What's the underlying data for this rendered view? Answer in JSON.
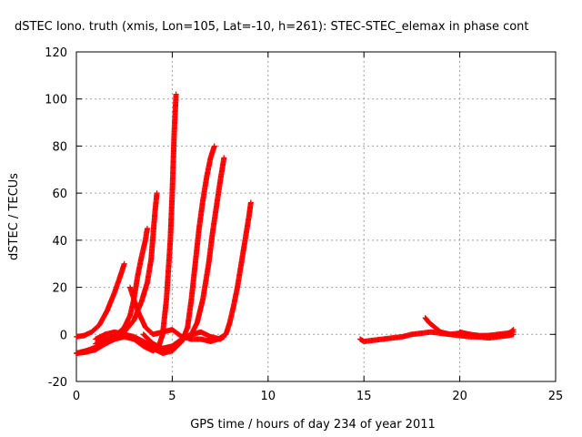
{
  "chart_data": {
    "type": "scatter",
    "title": "dSTEC Iono. truth (xmis, Lon=105, Lat=-10, h=261): STEC-STEC_elemax in phase cont",
    "xlabel": "GPS time / hours of day 234 of year 2011",
    "ylabel": "dSTEC  / TECUs",
    "xlim": [
      0,
      25
    ],
    "ylim": [
      -20,
      120
    ],
    "xticks": [
      0,
      5,
      10,
      15,
      20,
      25
    ],
    "yticks": [
      -20,
      0,
      20,
      40,
      60,
      80,
      100,
      120
    ],
    "grid": true,
    "marker": "+",
    "color": "#ff0000",
    "series": [
      {
        "x": [
          0,
          0.4,
          0.8,
          1.2,
          1.6,
          2.0,
          2.3,
          2.5
        ],
        "y": [
          -1,
          -0.5,
          1,
          4,
          10,
          18,
          25,
          30
        ]
      },
      {
        "x": [
          0,
          0.5,
          1.0,
          1.5,
          2.0,
          2.5,
          2.8,
          3.0,
          3.2,
          3.4,
          3.6,
          3.7
        ],
        "y": [
          -8,
          -7.5,
          -6.5,
          -4,
          -1,
          3,
          8,
          15,
          25,
          33,
          40,
          45
        ]
      },
      {
        "x": [
          0,
          0.5,
          1.0,
          1.5,
          2.0,
          2.5,
          3.0,
          3.4,
          3.7,
          3.9,
          4.0,
          4.1,
          4.2
        ],
        "y": [
          -8,
          -7,
          -5.5,
          -4,
          -2,
          1,
          6,
          14,
          22,
          32,
          42,
          52,
          60
        ]
      },
      {
        "x": [
          0,
          0.5,
          1.0,
          1.5,
          2.0,
          2.5,
          3.0,
          3.5,
          4.0,
          4.3,
          4.5,
          4.7,
          4.9,
          5.0,
          5.1,
          5.2
        ],
        "y": [
          -8,
          -7.5,
          -6,
          -4,
          -2,
          -1,
          -2,
          -5,
          -7,
          -5,
          0,
          15,
          40,
          60,
          85,
          102
        ]
      },
      {
        "x": [
          1.0,
          1.5,
          2.0,
          2.5,
          3.0,
          3.5,
          4.0,
          4.5,
          5.0,
          5.5,
          5.8,
          6.0,
          6.2,
          6.4,
          6.6,
          6.8,
          7.0,
          7.2
        ],
        "y": [
          -2,
          0,
          1,
          0,
          -2,
          -4,
          -6,
          -8,
          -7,
          -3,
          3,
          15,
          30,
          45,
          57,
          67,
          75,
          80
        ]
      },
      {
        "x": [
          1.0,
          1.5,
          2.0,
          2.5,
          3.0,
          3.5,
          4.0,
          4.5,
          5.0,
          5.5,
          6.0,
          6.3,
          6.6,
          6.9,
          7.1,
          7.3,
          7.5,
          7.7
        ],
        "y": [
          -4,
          -2,
          -1,
          0,
          -1,
          -3,
          -5,
          -6,
          -5,
          -2,
          0,
          5,
          15,
          30,
          43,
          54,
          65,
          75
        ]
      },
      {
        "x": [
          2.8,
          3.2,
          3.6,
          4.0,
          4.5,
          5.0,
          5.5,
          6.0,
          6.5,
          7.0,
          7.4,
          7.8,
          8.0,
          8.2,
          8.4,
          8.6,
          8.8,
          9.0,
          9.1
        ],
        "y": [
          20,
          10,
          3,
          0,
          1,
          2,
          -1,
          -2,
          -2,
          -3,
          -2,
          0,
          5,
          12,
          20,
          30,
          40,
          50,
          56
        ]
      },
      {
        "x": [
          3.5,
          4.0,
          4.5,
          5.0,
          5.5,
          6.0,
          6.5,
          7.0,
          7.5,
          7.7
        ],
        "y": [
          0,
          -4,
          -6,
          -5,
          -2,
          0,
          1,
          -1,
          -2,
          -1
        ]
      },
      {
        "x": [
          14.8,
          15.0,
          15.5,
          16.0,
          16.5,
          17.0,
          17.5,
          18.0,
          18.5,
          19.0,
          19.5,
          20.0,
          20.5,
          21.0,
          21.5,
          22.0,
          22.5,
          22.8
        ],
        "y": [
          -2,
          -3,
          -2.5,
          -2,
          -1.5,
          -1,
          0,
          0.5,
          1,
          0.5,
          0,
          0.5,
          0,
          -0.5,
          -0.5,
          0,
          0.5,
          1
        ]
      },
      {
        "x": [
          18.2,
          18.4,
          18.7,
          19.0,
          19.5,
          20.0,
          20.5,
          21.0,
          21.5,
          22.0,
          22.5,
          22.8
        ],
        "y": [
          7,
          5,
          3,
          1,
          0,
          -0.5,
          -1,
          -1,
          -0.5,
          -0.5,
          0,
          2
        ]
      },
      {
        "x": [
          20.0,
          20.5,
          21.0,
          21.5,
          22.0,
          22.5,
          22.8
        ],
        "y": [
          1,
          0,
          -1,
          -1.5,
          -1,
          -0.5,
          0
        ]
      }
    ]
  }
}
